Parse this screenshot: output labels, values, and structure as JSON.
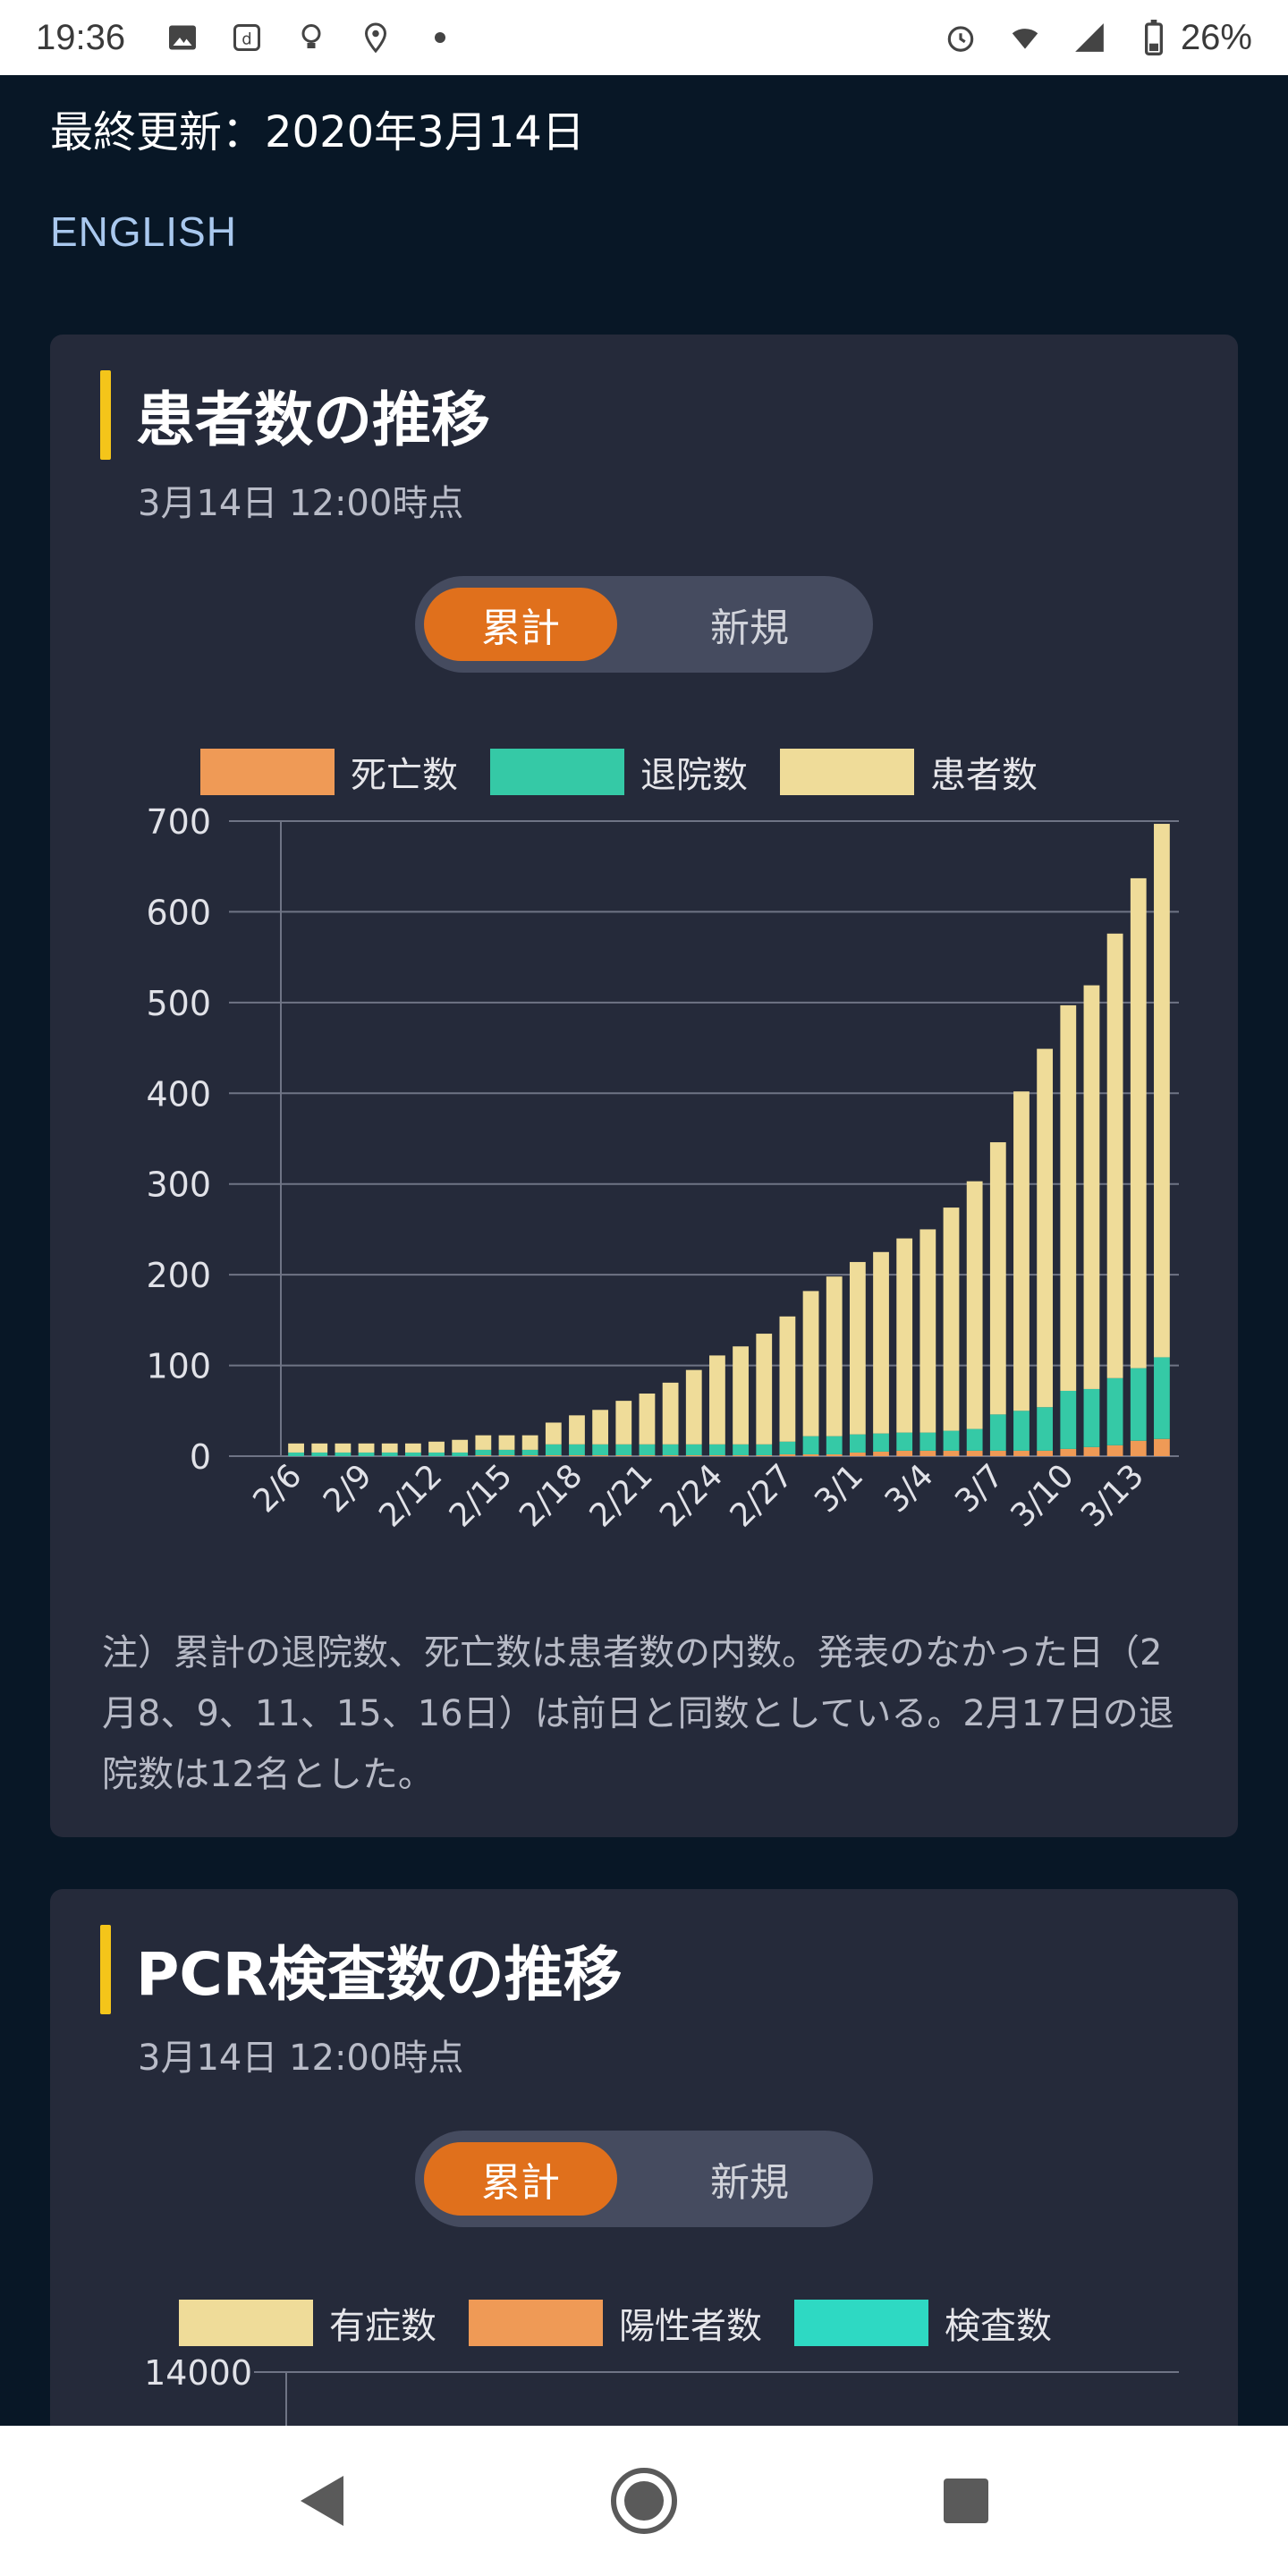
{
  "status_bar": {
    "time": "19:36",
    "battery": "26%",
    "icons_left": [
      "image-icon",
      "docomo-icon",
      "bulb-icon",
      "location-icon",
      "dot-icon"
    ],
    "icons_right": [
      "alarm-icon",
      "wifi-icon",
      "signal-icon",
      "battery-icon"
    ]
  },
  "header": {
    "last_updated": "最終更新：2020年3月14日",
    "english_link": "ENGLISH"
  },
  "patients_card": {
    "title": "患者数の推移",
    "subtitle": "3月14日 12:00時点",
    "toggle": {
      "active": "累計",
      "inactive": "新規"
    },
    "legend": [
      {
        "label": "死亡数",
        "color": "#ef9a56"
      },
      {
        "label": "退院数",
        "color": "#35c9a6"
      },
      {
        "label": "患者数",
        "color": "#efdc99"
      }
    ],
    "note": "注）累計の退院数、死亡数は患者数の内数。発表のなかった日（2月8、9、11、15、16日）は前日と同数としている。2月17日の退院数は12名とした。"
  },
  "pcr_card": {
    "title": "PCR検査数の推移",
    "subtitle": "3月14日 12:00時点",
    "toggle": {
      "active": "累計",
      "inactive": "新規"
    },
    "legend": [
      {
        "label": "有症数",
        "color": "#efdc99"
      },
      {
        "label": "陽性者数",
        "color": "#ef9a56"
      },
      {
        "label": "検査数",
        "color": "#2ed9c3"
      }
    ],
    "y_top_tick": "14000"
  },
  "chart_data": {
    "type": "bar",
    "stacked": true,
    "ylim": [
      0,
      700
    ],
    "yticks": [
      0,
      100,
      200,
      300,
      400,
      500,
      600,
      700
    ],
    "categories": [
      "2/6",
      "2/7",
      "2/8",
      "2/9",
      "2/10",
      "2/11",
      "2/12",
      "2/13",
      "2/14",
      "2/15",
      "2/16",
      "2/17",
      "2/18",
      "2/19",
      "2/20",
      "2/21",
      "2/22",
      "2/23",
      "2/24",
      "2/25",
      "2/26",
      "2/27",
      "2/28",
      "2/29",
      "3/1",
      "3/2",
      "3/3",
      "3/4",
      "3/5",
      "3/6",
      "3/7",
      "3/8",
      "3/9",
      "3/10",
      "3/11",
      "3/12",
      "3/13",
      "3/14"
    ],
    "x_tick_labels": [
      "2/6",
      "2/9",
      "2/12",
      "2/15",
      "2/18",
      "2/21",
      "2/24",
      "2/27",
      "3/1",
      "3/4",
      "3/7",
      "3/10",
      "3/13"
    ],
    "x_tick_indices": [
      0,
      3,
      6,
      9,
      12,
      15,
      18,
      21,
      24,
      27,
      30,
      33,
      36
    ],
    "series": [
      {
        "name": "死亡数",
        "color": "#ef9a56",
        "values": [
          0,
          0,
          0,
          0,
          0,
          0,
          0,
          0,
          1,
          1,
          1,
          1,
          1,
          1,
          1,
          1,
          1,
          1,
          1,
          1,
          1,
          2,
          2,
          2,
          4,
          5,
          6,
          6,
          6,
          6,
          6,
          6,
          6,
          8,
          10,
          12,
          17,
          19
        ]
      },
      {
        "name": "退院数",
        "color": "#35c9a6",
        "values": [
          4,
          4,
          4,
          4,
          4,
          4,
          4,
          4,
          6,
          6,
          6,
          12,
          12,
          12,
          12,
          12,
          12,
          12,
          12,
          12,
          12,
          14,
          20,
          20,
          20,
          20,
          20,
          20,
          22,
          24,
          40,
          44,
          48,
          64,
          64,
          74,
          80,
          90
        ]
      },
      {
        "name": "患者数",
        "color": "#efdc99",
        "values": [
          10,
          10,
          10,
          10,
          10,
          10,
          12,
          14,
          16,
          16,
          16,
          24,
          32,
          38,
          48,
          56,
          68,
          82,
          98,
          108,
          122,
          138,
          160,
          176,
          190,
          200,
          214,
          224,
          246,
          273,
          300,
          352,
          395,
          425,
          445,
          490,
          540,
          588
        ]
      }
    ]
  }
}
